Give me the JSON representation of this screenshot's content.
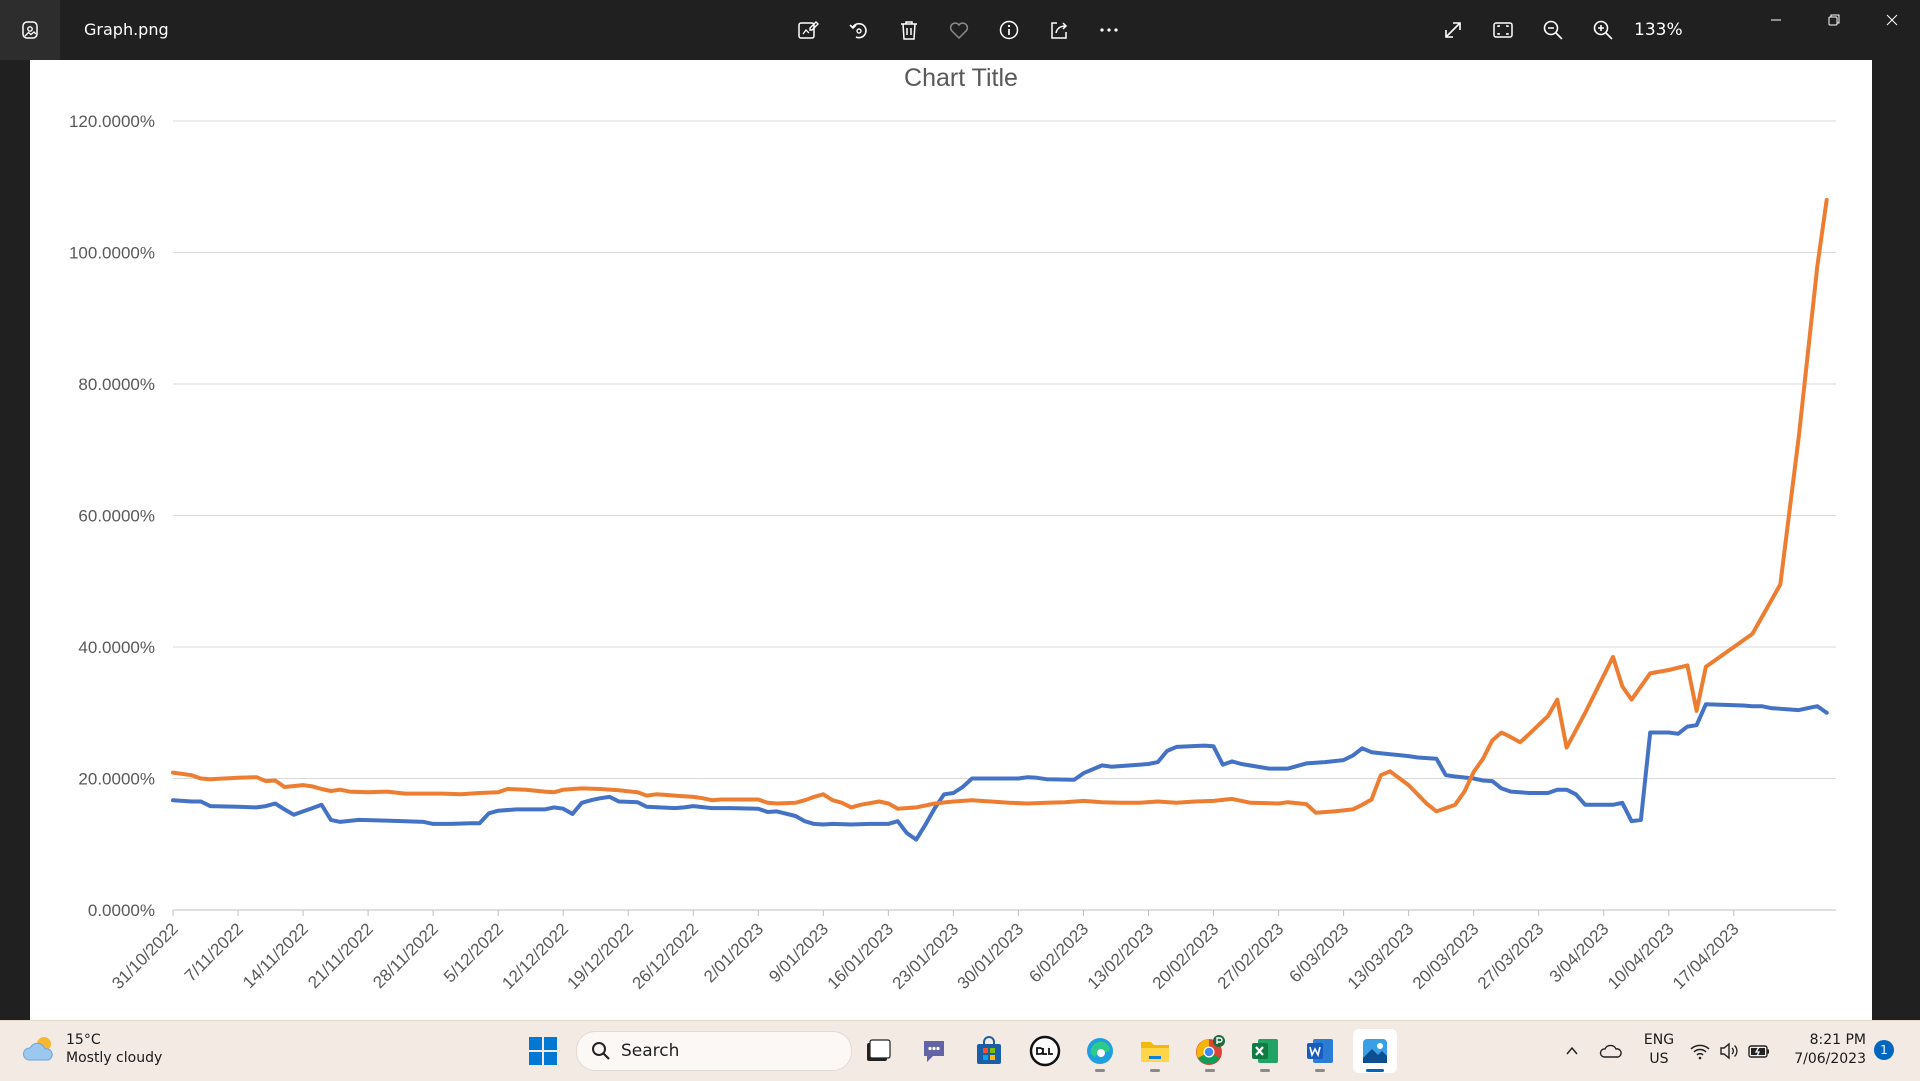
{
  "titlebar": {
    "file_name": "Graph.png",
    "zoom": "133%",
    "tools": [
      "edit-image-icon",
      "rotate-icon",
      "delete-icon",
      "favorite-icon",
      "info-icon",
      "share-icon",
      "more-icon"
    ],
    "view_tools": [
      "fullscreen-icon",
      "fit-to-window-icon",
      "zoom-out-icon",
      "zoom-in-icon"
    ]
  },
  "chart_data": {
    "type": "line",
    "title": "Chart Title",
    "xlabel": "",
    "ylabel": "",
    "ylim": [
      0,
      1.2
    ],
    "y_ticks": [
      "0.0000%",
      "20.0000%",
      "40.0000%",
      "60.0000%",
      "80.0000%",
      "100.0000%",
      "120.0000%"
    ],
    "x_tick_labels": [
      "31/10/2022",
      "7/11/2022",
      "14/11/2022",
      "21/11/2022",
      "28/11/2022",
      "5/12/2022",
      "12/12/2022",
      "19/12/2022",
      "26/12/2022",
      "2/01/2023",
      "9/01/2023",
      "16/01/2023",
      "23/01/2023",
      "30/01/2023",
      "6/02/2023",
      "13/02/2023",
      "20/02/2023",
      "27/02/2023",
      "6/03/2023",
      "13/03/2023",
      "20/03/2023",
      "27/03/2023",
      "3/04/2023",
      "10/04/2023",
      "17/04/2023"
    ],
    "x_range_days": [
      0,
      179
    ],
    "grid": true,
    "legend": "none",
    "series": [
      {
        "color": "#4472c4",
        "points": [
          [
            0,
            0.167
          ],
          [
            2,
            0.165
          ],
          [
            3,
            0.165
          ],
          [
            4,
            0.158
          ],
          [
            7,
            0.157
          ],
          [
            9,
            0.156
          ],
          [
            10,
            0.158
          ],
          [
            11,
            0.162
          ],
          [
            12,
            0.153
          ],
          [
            13,
            0.145
          ],
          [
            14,
            0.15
          ],
          [
            15,
            0.155
          ],
          [
            16,
            0.16
          ],
          [
            17,
            0.137
          ],
          [
            18,
            0.134
          ],
          [
            20,
            0.137
          ],
          [
            23,
            0.136
          ],
          [
            25,
            0.135
          ],
          [
            27,
            0.134
          ],
          [
            28,
            0.131
          ],
          [
            30,
            0.131
          ],
          [
            32,
            0.132
          ],
          [
            33,
            0.132
          ],
          [
            34,
            0.147
          ],
          [
            35,
            0.151
          ],
          [
            37,
            0.153
          ],
          [
            40,
            0.153
          ],
          [
            41,
            0.156
          ],
          [
            42,
            0.154
          ],
          [
            43,
            0.146
          ],
          [
            44,
            0.163
          ],
          [
            45,
            0.167
          ],
          [
            46,
            0.17
          ],
          [
            47,
            0.172
          ],
          [
            48,
            0.165
          ],
          [
            50,
            0.164
          ],
          [
            51,
            0.157
          ],
          [
            54,
            0.155
          ],
          [
            55,
            0.156
          ],
          [
            56,
            0.158
          ],
          [
            58,
            0.155
          ],
          [
            60,
            0.155
          ],
          [
            63,
            0.154
          ],
          [
            64,
            0.149
          ],
          [
            65,
            0.15
          ],
          [
            67,
            0.143
          ],
          [
            68,
            0.135
          ],
          [
            69,
            0.131
          ],
          [
            70,
            0.13
          ],
          [
            71,
            0.131
          ],
          [
            73,
            0.13
          ],
          [
            75,
            0.131
          ],
          [
            77,
            0.131
          ],
          [
            78,
            0.135
          ],
          [
            79,
            0.117
          ],
          [
            80,
            0.107
          ],
          [
            81,
            0.13
          ],
          [
            82,
            0.155
          ],
          [
            83,
            0.176
          ],
          [
            84,
            0.178
          ],
          [
            85,
            0.187
          ],
          [
            86,
            0.2
          ],
          [
            89,
            0.2
          ],
          [
            91,
            0.2
          ],
          [
            92,
            0.202
          ],
          [
            93,
            0.201
          ],
          [
            94,
            0.199
          ],
          [
            97,
            0.198
          ],
          [
            98,
            0.208
          ],
          [
            100,
            0.22
          ],
          [
            101,
            0.218
          ],
          [
            104,
            0.221
          ],
          [
            105,
            0.222
          ],
          [
            106,
            0.225
          ],
          [
            107,
            0.242
          ],
          [
            108,
            0.248
          ],
          [
            111,
            0.25
          ],
          [
            112,
            0.249
          ],
          [
            113,
            0.221
          ],
          [
            114,
            0.226
          ],
          [
            115,
            0.222
          ],
          [
            118,
            0.215
          ],
          [
            120,
            0.215
          ],
          [
            122,
            0.223
          ],
          [
            124,
            0.225
          ],
          [
            126,
            0.228
          ],
          [
            127,
            0.235
          ],
          [
            128,
            0.246
          ],
          [
            129,
            0.24
          ],
          [
            131,
            0.237
          ],
          [
            133,
            0.234
          ],
          [
            134,
            0.232
          ],
          [
            135,
            0.231
          ],
          [
            136,
            0.23
          ],
          [
            137,
            0.205
          ],
          [
            138,
            0.203
          ],
          [
            140,
            0.2
          ],
          [
            141,
            0.197
          ],
          [
            142,
            0.196
          ],
          [
            143,
            0.185
          ],
          [
            144,
            0.18
          ],
          [
            146,
            0.178
          ],
          [
            148,
            0.178
          ],
          [
            149,
            0.183
          ],
          [
            150,
            0.183
          ],
          [
            151,
            0.176
          ],
          [
            152,
            0.16
          ],
          [
            155,
            0.16
          ],
          [
            156,
            0.163
          ],
          [
            157,
            0.135
          ],
          [
            158,
            0.137
          ],
          [
            159,
            0.27
          ],
          [
            161,
            0.27
          ],
          [
            162,
            0.268
          ],
          [
            163,
            0.279
          ],
          [
            164,
            0.281
          ],
          [
            165,
            0.313
          ],
          [
            167,
            0.312
          ],
          [
            169,
            0.311
          ],
          [
            170,
            0.31
          ],
          [
            171,
            0.31
          ],
          [
            172,
            0.307
          ],
          [
            175,
            0.304
          ],
          [
            176,
            0.307
          ],
          [
            177,
            0.31
          ],
          [
            178,
            0.3
          ]
        ]
      },
      {
        "color": "#ed7d31",
        "points": [
          [
            0,
            0.209
          ],
          [
            2,
            0.205
          ],
          [
            3,
            0.2
          ],
          [
            4,
            0.199
          ],
          [
            7,
            0.201
          ],
          [
            9,
            0.202
          ],
          [
            10,
            0.196
          ],
          [
            11,
            0.197
          ],
          [
            12,
            0.187
          ],
          [
            14,
            0.19
          ],
          [
            15,
            0.188
          ],
          [
            16,
            0.184
          ],
          [
            17,
            0.181
          ],
          [
            18,
            0.183
          ],
          [
            19,
            0.18
          ],
          [
            21,
            0.179
          ],
          [
            23,
            0.18
          ],
          [
            25,
            0.177
          ],
          [
            27,
            0.177
          ],
          [
            29,
            0.177
          ],
          [
            31,
            0.176
          ],
          [
            32,
            0.177
          ],
          [
            33,
            0.178
          ],
          [
            35,
            0.179
          ],
          [
            36,
            0.184
          ],
          [
            38,
            0.183
          ],
          [
            40,
            0.18
          ],
          [
            41,
            0.179
          ],
          [
            42,
            0.183
          ],
          [
            44,
            0.185
          ],
          [
            46,
            0.184
          ],
          [
            48,
            0.182
          ],
          [
            50,
            0.179
          ],
          [
            51,
            0.174
          ],
          [
            52,
            0.176
          ],
          [
            53,
            0.175
          ],
          [
            54,
            0.174
          ],
          [
            56,
            0.172
          ],
          [
            57,
            0.17
          ],
          [
            58,
            0.167
          ],
          [
            59,
            0.168
          ],
          [
            61,
            0.168
          ],
          [
            63,
            0.168
          ],
          [
            64,
            0.163
          ],
          [
            65,
            0.162
          ],
          [
            67,
            0.163
          ],
          [
            68,
            0.167
          ],
          [
            69,
            0.172
          ],
          [
            70,
            0.176
          ],
          [
            71,
            0.167
          ],
          [
            72,
            0.163
          ],
          [
            73,
            0.156
          ],
          [
            74,
            0.16
          ],
          [
            76,
            0.165
          ],
          [
            77,
            0.162
          ],
          [
            78,
            0.154
          ],
          [
            80,
            0.156
          ],
          [
            82,
            0.162
          ],
          [
            84,
            0.165
          ],
          [
            86,
            0.167
          ],
          [
            88,
            0.165
          ],
          [
            90,
            0.163
          ],
          [
            92,
            0.162
          ],
          [
            94,
            0.163
          ],
          [
            96,
            0.164
          ],
          [
            98,
            0.166
          ],
          [
            100,
            0.164
          ],
          [
            102,
            0.163
          ],
          [
            104,
            0.163
          ],
          [
            106,
            0.165
          ],
          [
            108,
            0.163
          ],
          [
            110,
            0.165
          ],
          [
            112,
            0.166
          ],
          [
            114,
            0.169
          ],
          [
            116,
            0.163
          ],
          [
            119,
            0.162
          ],
          [
            120,
            0.164
          ],
          [
            122,
            0.161
          ],
          [
            123,
            0.148
          ],
          [
            125,
            0.15
          ],
          [
            127,
            0.153
          ],
          [
            128,
            0.16
          ],
          [
            129,
            0.168
          ],
          [
            130,
            0.205
          ],
          [
            131,
            0.211
          ],
          [
            133,
            0.19
          ],
          [
            135,
            0.161
          ],
          [
            136,
            0.15
          ],
          [
            137,
            0.155
          ],
          [
            138,
            0.16
          ],
          [
            139,
            0.18
          ],
          [
            140,
            0.21
          ],
          [
            141,
            0.23
          ],
          [
            142,
            0.258
          ],
          [
            143,
            0.27
          ],
          [
            144,
            0.263
          ],
          [
            145,
            0.255
          ],
          [
            146,
            0.268
          ],
          [
            148,
            0.295
          ],
          [
            149,
            0.32
          ],
          [
            150,
            0.247
          ],
          [
            152,
            0.3
          ],
          [
            155,
            0.385
          ],
          [
            156,
            0.34
          ],
          [
            157,
            0.32
          ],
          [
            159,
            0.36
          ],
          [
            161,
            0.365
          ],
          [
            163,
            0.372
          ],
          [
            164,
            0.303
          ],
          [
            165,
            0.37
          ],
          [
            170,
            0.42
          ],
          [
            173,
            0.495
          ],
          [
            175,
            0.72
          ],
          [
            177,
            0.98
          ],
          [
            178,
            1.08
          ]
        ]
      }
    ]
  },
  "taskbar": {
    "weather": {
      "temp": "15°C",
      "condition": "Mostly cloudy"
    },
    "search_label": "Search",
    "language": {
      "line1": "ENG",
      "line2": "US"
    },
    "clock": {
      "time": "8:21 PM",
      "date": "7/06/2023"
    },
    "notification_count": "1"
  }
}
